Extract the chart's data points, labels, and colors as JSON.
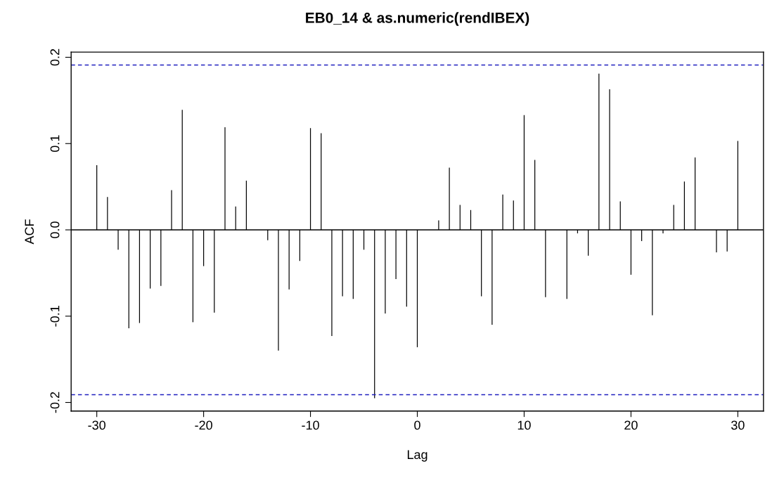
{
  "chart_data": {
    "type": "bar",
    "title": "EB0_14 & as.numeric(rendIBEX)",
    "xlabel": "Lag",
    "ylabel": "ACF",
    "x": [
      -30,
      -29,
      -28,
      -27,
      -26,
      -25,
      -24,
      -23,
      -22,
      -21,
      -20,
      -19,
      -18,
      -17,
      -16,
      -15,
      -14,
      -13,
      -12,
      -11,
      -10,
      -9,
      -8,
      -7,
      -6,
      -5,
      -4,
      -3,
      -2,
      -1,
      0,
      1,
      2,
      3,
      4,
      5,
      6,
      7,
      8,
      9,
      10,
      11,
      12,
      13,
      14,
      15,
      16,
      17,
      18,
      19,
      20,
      21,
      22,
      23,
      24,
      25,
      26,
      27,
      28,
      29,
      30
    ],
    "series": [
      {
        "color": "#000000",
        "values": [
          0.075,
          0.038,
          -0.023,
          -0.114,
          -0.108,
          -0.068,
          -0.065,
          0.046,
          0.139,
          -0.107,
          -0.042,
          -0.096,
          0.119,
          0.027,
          0.057,
          null,
          -0.012,
          -0.14,
          -0.069,
          -0.036,
          0.118,
          0.112,
          -0.123,
          -0.077,
          -0.08,
          -0.023,
          -0.195,
          -0.097,
          -0.057,
          -0.089,
          -0.136,
          null,
          0.011,
          0.072,
          0.029,
          0.023,
          -0.077,
          -0.11,
          0.041,
          0.034,
          0.133,
          0.081,
          -0.078,
          null,
          -0.08,
          -0.004,
          -0.03,
          0.181,
          0.163,
          0.033,
          -0.052,
          -0.013,
          -0.099,
          -0.004,
          0.029,
          0.056,
          0.084,
          null,
          -0.026,
          -0.025,
          0.103
        ]
      }
    ],
    "xlim": [
      -32.4,
      32.4
    ],
    "ylim": [
      -0.21,
      0.206
    ],
    "xticks": [
      -30,
      -20,
      -10,
      0,
      10,
      20,
      30
    ],
    "yticks": [
      {
        "value": -0.2,
        "label": "-0.2"
      },
      {
        "value": -0.1,
        "label": "-0.1"
      },
      {
        "value": 0,
        "label": "0.0"
      },
      {
        "value": 0.1,
        "label": "0.1"
      },
      {
        "value": 0.2,
        "label": "0.2"
      }
    ],
    "ref_lines": [
      {
        "axis": "y",
        "value": 0,
        "color": "#000000",
        "line_style": "solid"
      },
      {
        "axis": "y",
        "value": 0.191,
        "color": "#1f1fbf",
        "line_style": "dashed"
      },
      {
        "axis": "y",
        "value": -0.191,
        "color": "#1f1fbf",
        "line_style": "dashed"
      }
    ],
    "grid": false,
    "legend": false
  }
}
